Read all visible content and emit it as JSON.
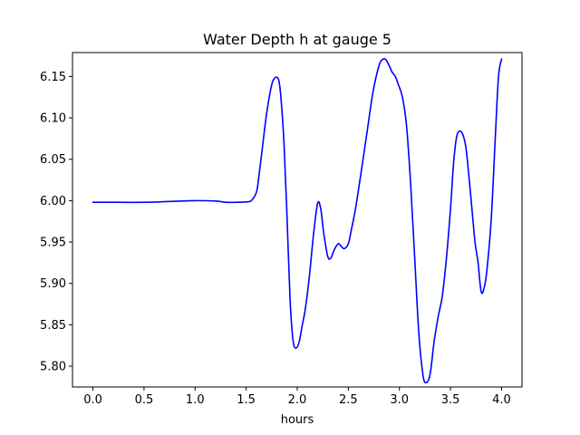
{
  "chart_data": {
    "type": "line",
    "title": "Water Depth h at gauge 5",
    "xlabel": "hours",
    "ylabel": "",
    "xlim": [
      -0.2,
      4.2
    ],
    "ylim": [
      5.7749,
      6.1789
    ],
    "grid": false,
    "x_ticks": [
      0.0,
      0.5,
      1.0,
      1.5,
      2.0,
      2.5,
      3.0,
      3.5,
      4.0
    ],
    "x_tick_labels": [
      "0.0",
      "0.5",
      "1.0",
      "1.5",
      "2.0",
      "2.5",
      "3.0",
      "3.5",
      "4.0"
    ],
    "y_ticks": [
      5.8,
      5.85,
      5.9,
      5.95,
      6.0,
      6.05,
      6.1,
      6.15
    ],
    "y_tick_labels": [
      "5.80",
      "5.85",
      "5.90",
      "5.95",
      "6.00",
      "6.05",
      "6.10",
      "6.15"
    ],
    "series": [
      {
        "color": "#0000ff",
        "x": [
          0.0,
          0.25,
          0.5,
          0.75,
          1.0,
          1.2,
          1.3,
          1.4,
          1.5,
          1.55,
          1.6,
          1.62,
          1.65,
          1.7,
          1.75,
          1.78,
          1.8,
          1.82,
          1.84,
          1.87,
          1.9,
          1.93,
          1.96,
          1.99,
          2.02,
          2.05,
          2.08,
          2.12,
          2.16,
          2.2,
          2.23,
          2.26,
          2.3,
          2.33,
          2.36,
          2.4,
          2.43,
          2.46,
          2.5,
          2.53,
          2.57,
          2.62,
          2.68,
          2.74,
          2.8,
          2.84,
          2.87,
          2.9,
          2.93,
          2.96,
          2.99,
          3.03,
          3.07,
          3.11,
          3.15,
          3.19,
          3.23,
          3.26,
          3.3,
          3.34,
          3.38,
          3.42,
          3.46,
          3.5,
          3.53,
          3.56,
          3.59,
          3.62,
          3.65,
          3.68,
          3.71,
          3.74,
          3.77,
          3.8,
          3.83,
          3.86,
          3.9,
          3.94,
          3.97,
          4.0
        ],
        "y": [
          5.998,
          5.998,
          5.998,
          5.999,
          6.0,
          5.9995,
          5.998,
          5.998,
          5.9985,
          6.0,
          6.01,
          6.025,
          6.055,
          6.105,
          6.14,
          6.148,
          6.149,
          6.145,
          6.125,
          6.07,
          5.98,
          5.88,
          5.83,
          5.822,
          5.83,
          5.85,
          5.87,
          5.91,
          5.96,
          5.997,
          5.99,
          5.96,
          5.932,
          5.931,
          5.94,
          5.948,
          5.945,
          5.942,
          5.948,
          5.965,
          5.99,
          6.03,
          6.08,
          6.13,
          6.163,
          6.171,
          6.17,
          6.163,
          6.155,
          6.15,
          6.14,
          6.125,
          6.09,
          6.02,
          5.93,
          5.84,
          5.79,
          5.78,
          5.79,
          5.83,
          5.86,
          5.885,
          5.93,
          5.99,
          6.045,
          6.077,
          6.084,
          6.08,
          6.065,
          6.03,
          5.99,
          5.95,
          5.925,
          5.89,
          5.895,
          5.92,
          5.98,
          6.08,
          6.15,
          6.171
        ]
      }
    ]
  }
}
